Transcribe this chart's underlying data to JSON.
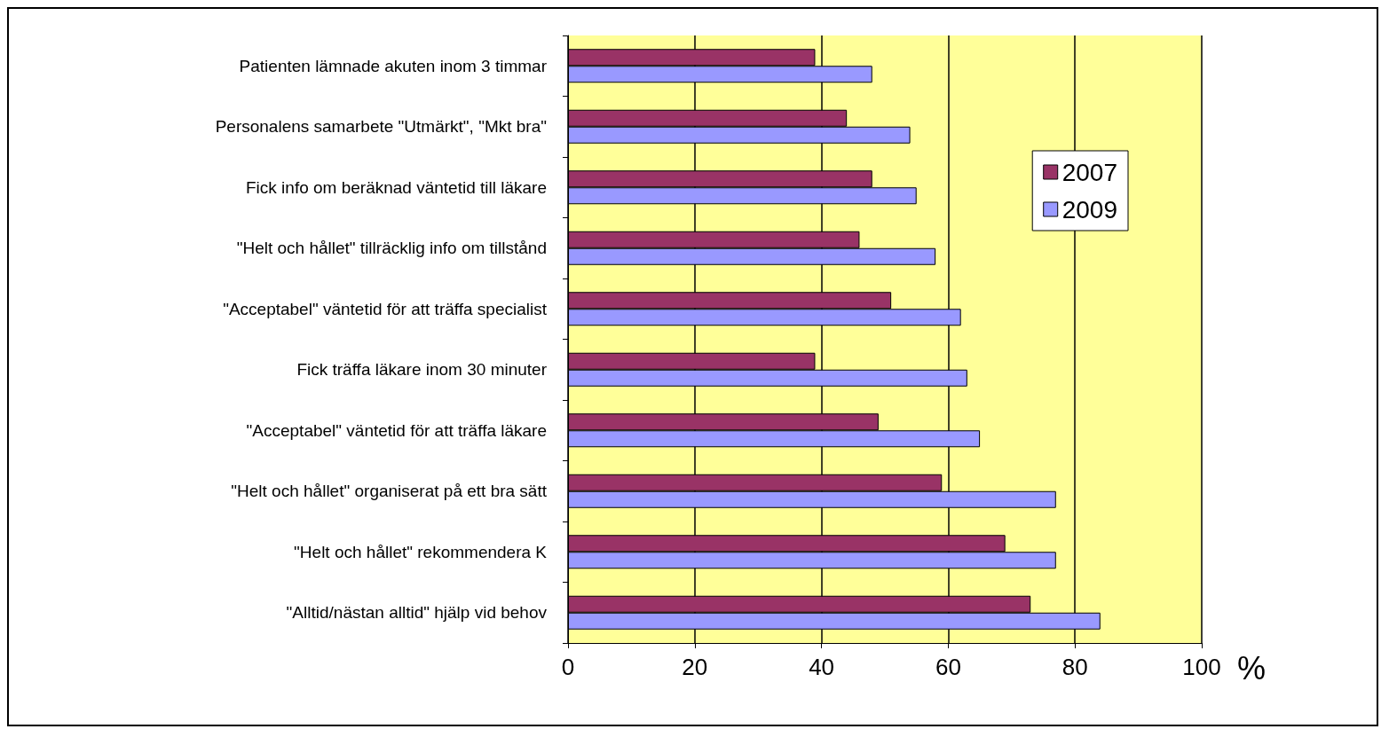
{
  "chart_data": {
    "type": "bar",
    "orientation": "horizontal",
    "xlabel": "%",
    "categories": [
      "Patienten lämnade akuten inom 3 timmar",
      "Personalens samarbete \"Utmärkt\", \"Mkt bra\"",
      "Fick info om beräknad väntetid till läkare",
      "\"Helt och hållet\" tillräcklig info om tillstånd",
      "\"Acceptabel\" väntetid för att träffa specialist",
      "Fick träffa läkare inom 30 minuter",
      "\"Acceptabel\" väntetid för att träffa läkare",
      "\"Helt och hållet\" organiserat på ett bra sätt",
      "\"Helt och hållet\" rekommendera K",
      "\"Alltid/nästan alltid\" hjälp vid behov"
    ],
    "series": [
      {
        "name": "2007",
        "color": "#993366",
        "values": [
          39,
          44,
          48,
          46,
          51,
          39,
          49,
          59,
          69,
          73
        ]
      },
      {
        "name": "2009",
        "color": "#9999ff",
        "values": [
          48,
          54,
          55,
          58,
          62,
          63,
          65,
          77,
          77,
          84
        ]
      }
    ],
    "xlim": [
      0,
      100
    ],
    "xticks": [
      0,
      20,
      40,
      60,
      80,
      100
    ],
    "grid": "x",
    "legend": "right"
  }
}
